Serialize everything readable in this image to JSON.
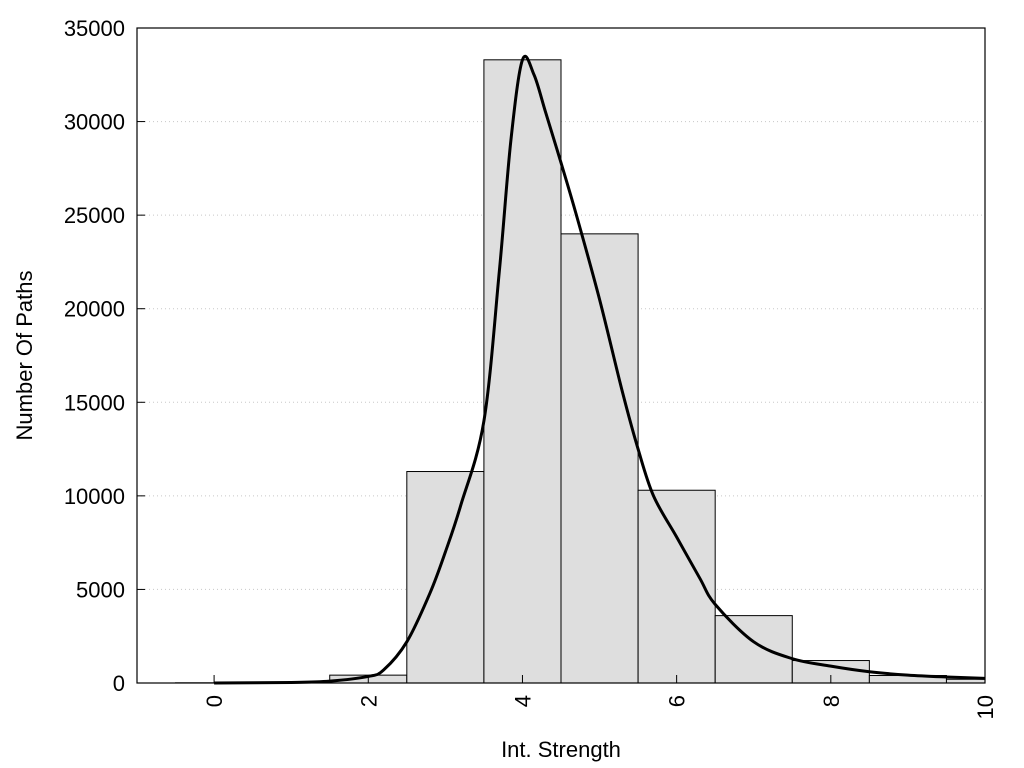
{
  "chart_data": {
    "type": "bar",
    "title": "",
    "xlabel": "Int. Strength",
    "ylabel": "Number Of Paths",
    "xlim": [
      -1,
      10
    ],
    "ylim": [
      0,
      35000
    ],
    "grid": "horizontal-dotted",
    "x_ticks": [
      0,
      2,
      4,
      6,
      8,
      10
    ],
    "y_ticks": [
      0,
      5000,
      10000,
      15000,
      20000,
      25000,
      30000,
      35000
    ],
    "x_tick_labels": [
      "0",
      "2",
      "4",
      "6",
      "8",
      "10"
    ],
    "y_tick_labels": [
      "0",
      "5000",
      "10000",
      "15000",
      "20000",
      "25000",
      "30000",
      "35000"
    ],
    "bins": [
      {
        "x": 0,
        "value": 10
      },
      {
        "x": 1,
        "value": 20
      },
      {
        "x": 2,
        "value": 420
      },
      {
        "x": 3,
        "value": 11300
      },
      {
        "x": 4,
        "value": 33300
      },
      {
        "x": 5,
        "value": 24000
      },
      {
        "x": 6,
        "value": 10300
      },
      {
        "x": 7,
        "value": 3600
      },
      {
        "x": 8,
        "value": 1200
      },
      {
        "x": 9,
        "value": 400
      },
      {
        "x": 10,
        "value": 200
      }
    ],
    "bin_width": 1,
    "bar_color": "#dedede",
    "bar_edge_color": "#000000",
    "curve": {
      "color": "#000000",
      "points": [
        [
          0,
          0
        ],
        [
          1,
          30
        ],
        [
          1.5,
          100
        ],
        [
          2,
          350
        ],
        [
          2.2,
          700
        ],
        [
          2.5,
          2200
        ],
        [
          2.8,
          4800
        ],
        [
          3,
          7000
        ],
        [
          3.2,
          9500
        ],
        [
          3.5,
          14000
        ],
        [
          3.7,
          22000
        ],
        [
          3.85,
          29000
        ],
        [
          4,
          33300
        ],
        [
          4.15,
          32500
        ],
        [
          4.3,
          30500
        ],
        [
          4.5,
          27800
        ],
        [
          4.7,
          25000
        ],
        [
          5,
          20500
        ],
        [
          5.3,
          15500
        ],
        [
          5.5,
          12500
        ],
        [
          5.7,
          10000
        ],
        [
          6,
          7800
        ],
        [
          6.3,
          5600
        ],
        [
          6.5,
          4200
        ],
        [
          7,
          2200
        ],
        [
          7.5,
          1300
        ],
        [
          8,
          900
        ],
        [
          8.5,
          600
        ],
        [
          9,
          420
        ],
        [
          9.5,
          320
        ],
        [
          10,
          250
        ]
      ]
    }
  }
}
